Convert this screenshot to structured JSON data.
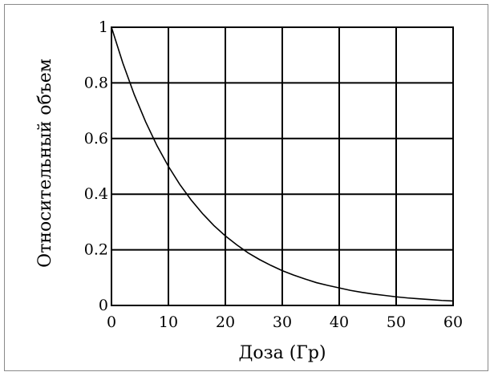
{
  "chart_data": {
    "type": "line",
    "title": "",
    "xlabel": "Доза (Гр)",
    "ylabel": "Относительный объем",
    "xlim": [
      0,
      60
    ],
    "ylim": [
      0,
      1
    ],
    "x_ticks": [
      "0",
      "10",
      "20",
      "30",
      "40",
      "50",
      "60"
    ],
    "y_ticks": [
      "0",
      "0.2",
      "0.4",
      "0.6",
      "0.8",
      "1"
    ],
    "grid": true,
    "legend": "none",
    "series": [
      {
        "color": "#000000",
        "x": [
          0,
          2,
          4,
          6,
          8,
          10,
          12,
          14,
          16,
          18,
          20,
          22,
          24,
          26,
          28,
          30,
          32,
          34,
          36,
          38,
          40,
          42,
          44,
          46,
          48,
          50,
          52,
          54,
          56,
          58,
          60
        ],
        "y": [
          1.0,
          0.871,
          0.758,
          0.66,
          0.574,
          0.5,
          0.435,
          0.379,
          0.33,
          0.287,
          0.25,
          0.218,
          0.189,
          0.165,
          0.144,
          0.125,
          0.109,
          0.095,
          0.082,
          0.072,
          0.063,
          0.054,
          0.047,
          0.041,
          0.036,
          0.031,
          0.027,
          0.024,
          0.021,
          0.018,
          0.016
        ]
      }
    ]
  }
}
